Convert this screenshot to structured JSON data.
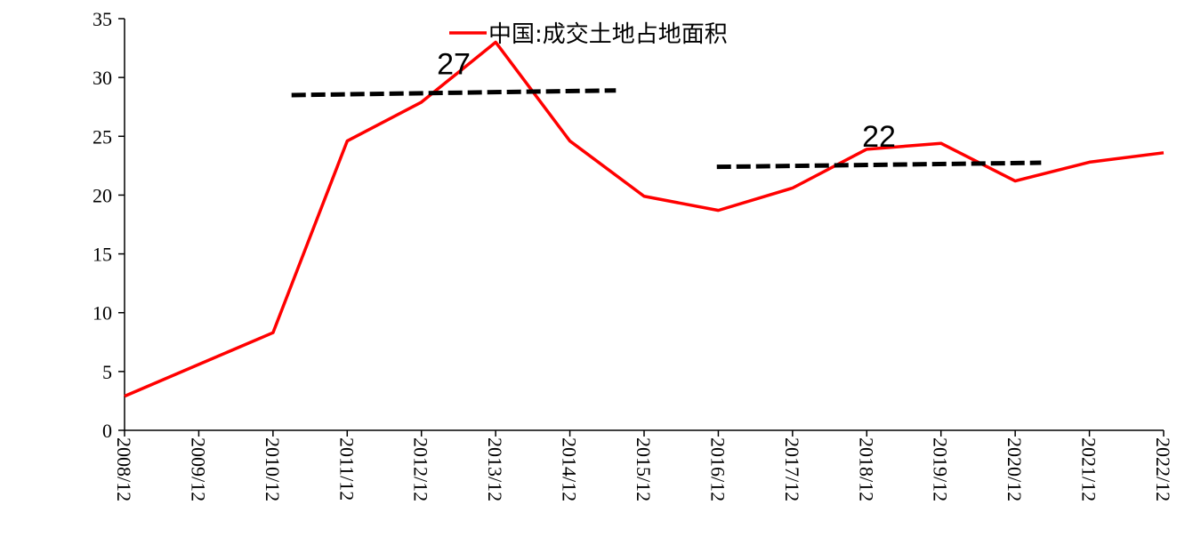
{
  "chart_data": {
    "type": "line",
    "categories": [
      "2008/12",
      "2009/12",
      "2010/12",
      "2011/12",
      "2012/12",
      "2013/12",
      "2014/12",
      "2015/12",
      "2016/12",
      "2017/12",
      "2018/12",
      "2019/12",
      "2020/12",
      "2021/12",
      "2022/12"
    ],
    "series": [
      {
        "name": "中国:成交土地占地面积",
        "color": "#ff0000",
        "values": [
          2.9,
          5.6,
          8.3,
          24.6,
          27.9,
          33.0,
          24.6,
          19.9,
          18.7,
          20.6,
          23.9,
          24.4,
          21.2,
          22.8,
          23.6
        ]
      }
    ],
    "ylim": [
      0,
      35
    ],
    "yticks": [
      0,
      5,
      10,
      15,
      20,
      25,
      30,
      35
    ],
    "annotations": [
      {
        "text": "27",
        "x": [
          2.25,
          6.62
        ],
        "y": [
          28.5,
          28.9
        ]
      },
      {
        "text": "22",
        "x": [
          7.98,
          12.35
        ],
        "y": [
          22.4,
          22.75
        ]
      }
    ]
  }
}
